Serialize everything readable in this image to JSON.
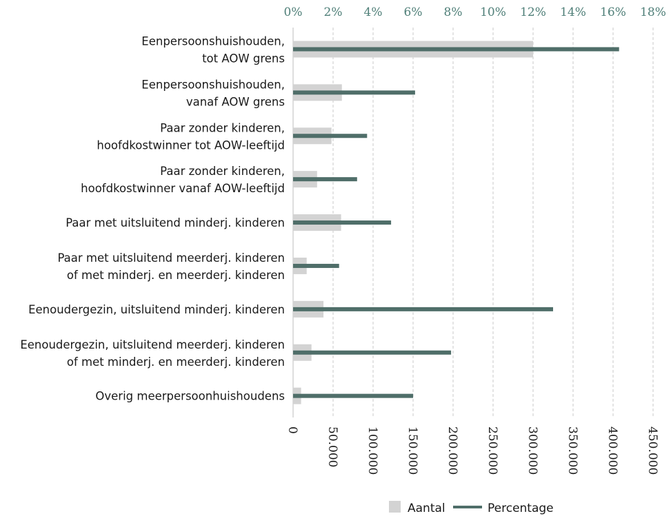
{
  "chart_data": {
    "type": "bar",
    "orientation": "horizontal",
    "categories": [
      [
        "Eenpersoonshuishouden,",
        "tot AOW grens"
      ],
      [
        "Eenpersoonshuishouden,",
        "vanaf AOW grens"
      ],
      [
        "Paar zonder kinderen,",
        "hoofdkostwinner tot AOW-leeftijd"
      ],
      [
        "Paar zonder kinderen,",
        "hoofdkostwinner vanaf AOW-leeftijd"
      ],
      [
        "Paar met uitsluitend minderj. kinderen"
      ],
      [
        "Paar met uitsluitend meerderj. kinderen",
        "of met minderj. en meerderj. kinderen"
      ],
      [
        "Eenoudergezin, uitsluitend minderj. kinderen"
      ],
      [
        "Eenoudergezin, uitsluitend meerderj. kinderen",
        "of met  minderj. en meerderj. kinderen"
      ],
      [
        "Overig meerpersoonhuishoudens"
      ]
    ],
    "series": [
      {
        "name": "Aantal",
        "axis": "bottom",
        "color": "#d3d3d3",
        "values": [
          300000,
          61000,
          48000,
          30000,
          60000,
          17000,
          38000,
          23000,
          10000
        ]
      },
      {
        "name": "Percentage",
        "axis": "top",
        "color": "#4f6e69",
        "values": [
          16.3,
          6.1,
          3.7,
          3.2,
          4.9,
          2.3,
          13.0,
          7.9,
          6.0
        ]
      }
    ],
    "axis_bottom": {
      "range": [
        0,
        450000
      ],
      "tick_labels": [
        "0",
        "50.000",
        "100.000",
        "150.000",
        "200.000",
        "250.000",
        "300.000",
        "350.000",
        "400.000",
        "450.000"
      ]
    },
    "axis_top": {
      "range": [
        0,
        18
      ],
      "tick_labels": [
        "0%",
        "2%",
        "4%",
        "6%",
        "8%",
        "10%",
        "12%",
        "14%",
        "16%",
        "18%"
      ],
      "color": "#4f7f78"
    },
    "grid": "vertical-dashed",
    "gridColor": "#c9c9c9",
    "legend": {
      "position": "bottom-right",
      "items": [
        "Aantal",
        "Percentage"
      ]
    }
  }
}
